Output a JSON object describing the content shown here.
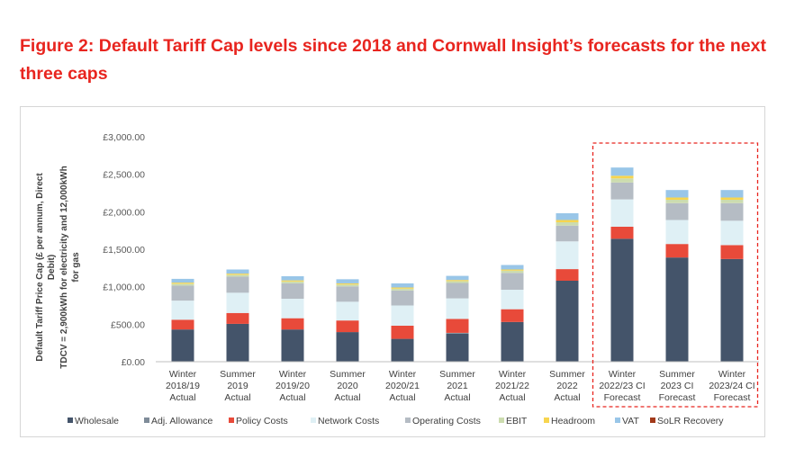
{
  "figure": {
    "title": "Figure 2: Default Tariff Cap levels since 2018 and Cornwall Insight’s forecasts for the next three caps"
  },
  "chart_data": {
    "type": "bar",
    "stacked": true,
    "ylabel_lines": [
      "Default Tariff Price Cap (£ per annum, Direct",
      "Debit)",
      "TDCV = 2,900kWh for electricity and 12,000kWh",
      "for gas"
    ],
    "ylim": [
      0,
      3000
    ],
    "yticks": [
      {
        "value": 0,
        "label": "£0.00"
      },
      {
        "value": 500,
        "label": "£500.00"
      },
      {
        "value": 1000,
        "label": "£1,000.00"
      },
      {
        "value": 1500,
        "label": "£1,500.00"
      },
      {
        "value": 2000,
        "label": "£2,000.00"
      },
      {
        "value": 2500,
        "label": "£2,500.00"
      },
      {
        "value": 3000,
        "label": "£3,000.00"
      }
    ],
    "grid": false,
    "legend_position": "bottom",
    "categories": [
      [
        "Winter",
        "2018/19",
        "Actual"
      ],
      [
        "Summer",
        "2019",
        "Actual"
      ],
      [
        "Winter",
        "2019/20",
        "Actual"
      ],
      [
        "Summer",
        "2020",
        "Actual"
      ],
      [
        "Winter",
        "2020/21",
        "Actual"
      ],
      [
        "Summer",
        "2021",
        "Actual"
      ],
      [
        "Winter",
        "2021/22",
        "Actual"
      ],
      [
        "Summer",
        "2022",
        "Actual"
      ],
      [
        "Winter",
        "2022/23 CI",
        "Forecast"
      ],
      [
        "Summer",
        "2023 CI",
        "Forecast"
      ],
      [
        "Winter",
        "2023/24 CI",
        "Forecast"
      ]
    ],
    "forecast_highlight": {
      "from_index": 8,
      "to_index": 10,
      "color": "#e8251f",
      "style": "dashed"
    },
    "series": [
      {
        "name": "Wholesale",
        "color": "#44546a",
        "values": [
          430,
          505,
          430,
          395,
          305,
          375,
          530,
          1080,
          1640,
          1390,
          1370
        ]
      },
      {
        "name": "Adj. Allowance",
        "color": "#7f8c99",
        "values": [
          0,
          0,
          0,
          0,
          0,
          10,
          0,
          0,
          0,
          0,
          0
        ]
      },
      {
        "name": "Policy Costs",
        "color": "#e84a3a",
        "values": [
          130,
          145,
          150,
          155,
          175,
          185,
          170,
          155,
          160,
          180,
          185
        ]
      },
      {
        "name": "Network Costs",
        "color": "#dff0f5",
        "values": [
          255,
          270,
          260,
          250,
          270,
          275,
          260,
          370,
          365,
          320,
          325
        ]
      },
      {
        "name": "Operating Costs",
        "color": "#b5bcc4",
        "values": [
          200,
          215,
          205,
          205,
          200,
          205,
          225,
          210,
          225,
          225,
          235
        ]
      },
      {
        "name": "EBIT",
        "color": "#ccdcaf",
        "values": [
          25,
          25,
          25,
          25,
          25,
          25,
          30,
          45,
          55,
          45,
          45
        ]
      },
      {
        "name": "Headroom",
        "color": "#f7d54f",
        "values": [
          15,
          15,
          15,
          15,
          15,
          15,
          15,
          30,
          35,
          30,
          30
        ]
      },
      {
        "name": "VAT",
        "color": "#99c6e8",
        "values": [
          50,
          55,
          55,
          55,
          55,
          55,
          60,
          90,
          110,
          100,
          100
        ]
      },
      {
        "name": "SoLR Recovery",
        "color": "#a23a1a",
        "values": [
          0,
          0,
          0,
          0,
          0,
          0,
          0,
          0,
          0,
          0,
          0
        ]
      }
    ]
  }
}
